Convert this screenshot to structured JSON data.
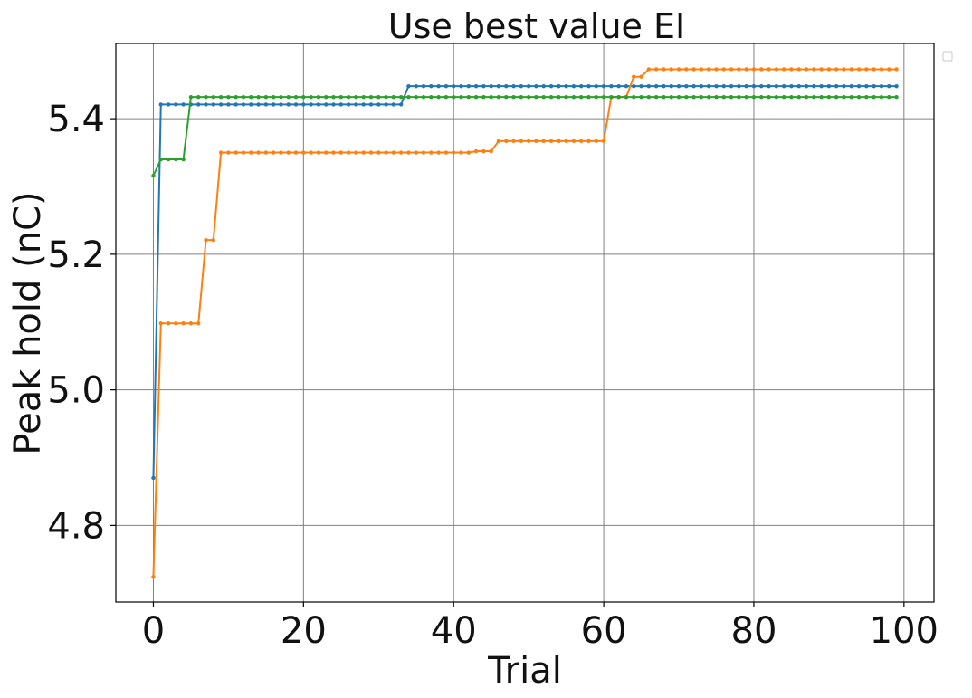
{
  "chart_data": {
    "type": "line",
    "title": "Use best value EI",
    "xlabel": "Trial",
    "ylabel": "Peak hold (nC)",
    "xlim": [
      -5,
      104
    ],
    "ylim": [
      4.687,
      5.511
    ],
    "xticks": [
      0,
      20,
      40,
      60,
      80,
      100
    ],
    "yticks": [
      4.8,
      5.0,
      5.2,
      5.4
    ],
    "xtick_labels": [
      "0",
      "20",
      "40",
      "60",
      "80",
      "100"
    ],
    "ytick_labels": [
      "4.8",
      "5.0",
      "5.2",
      "5.4"
    ],
    "grid": true,
    "legend": {
      "placement": "top-right",
      "entries": []
    },
    "x": {
      "start": 0,
      "end": 99,
      "step": 1
    },
    "series": [
      {
        "color": "#1f77b4",
        "steps": [
          [
            0,
            4.87
          ],
          [
            1,
            5.421
          ],
          [
            34,
            5.448
          ]
        ]
      },
      {
        "color": "#ff7f0e",
        "steps": [
          [
            0,
            4.724
          ],
          [
            1,
            5.098
          ],
          [
            7,
            5.221
          ],
          [
            9,
            5.35
          ],
          [
            43,
            5.352
          ],
          [
            46,
            5.367
          ],
          [
            61,
            5.432
          ],
          [
            64,
            5.462
          ],
          [
            66,
            5.473
          ]
        ]
      },
      {
        "color": "#2ca02c",
        "steps": [
          [
            0,
            5.316
          ],
          [
            1,
            5.34
          ],
          [
            5,
            5.432
          ]
        ]
      }
    ]
  }
}
